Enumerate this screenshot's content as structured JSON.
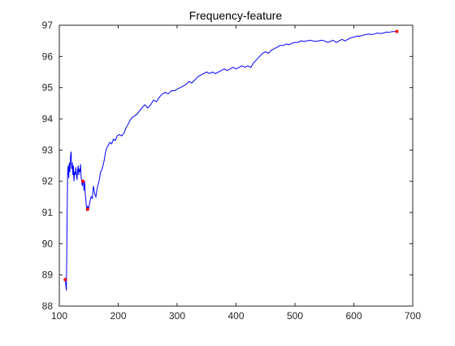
{
  "chart_data": {
    "type": "line",
    "title": "Frequency-feature",
    "xlabel": "",
    "ylabel": "",
    "xlim": [
      100,
      700
    ],
    "ylim": [
      88,
      97
    ],
    "x_ticks": [
      100,
      200,
      300,
      400,
      500,
      600,
      700
    ],
    "y_ticks": [
      88,
      89,
      90,
      91,
      92,
      93,
      94,
      95,
      96,
      97
    ],
    "grid": false,
    "legend": "none",
    "colors": {
      "line": "#0000ff",
      "marker": "#ff0000",
      "axis": "#262626"
    },
    "series": [
      {
        "points": [
          [
            110,
            88.85
          ],
          [
            112,
            88.5
          ],
          [
            113,
            90.3
          ],
          [
            114,
            92.3
          ],
          [
            115,
            92.5
          ],
          [
            116,
            92.1
          ],
          [
            117,
            92.6
          ],
          [
            118,
            92.3
          ],
          [
            119,
            92.8
          ],
          [
            120,
            92.95
          ],
          [
            121,
            92.4
          ],
          [
            122,
            92.6
          ],
          [
            123,
            92.2
          ],
          [
            124,
            92.5
          ],
          [
            125,
            92.0
          ],
          [
            126,
            92.3
          ],
          [
            127,
            92.2
          ],
          [
            128,
            92.45
          ],
          [
            129,
            92.25
          ],
          [
            130,
            92.05
          ],
          [
            131,
            92.35
          ],
          [
            132,
            92.5
          ],
          [
            133,
            92.2
          ],
          [
            134,
            92.4
          ],
          [
            135,
            92.3
          ],
          [
            136,
            92.55
          ],
          [
            137,
            92.15
          ],
          [
            138,
            92.0
          ],
          [
            139,
            91.85
          ],
          [
            140,
            92.05
          ],
          [
            141,
            91.95
          ],
          [
            142,
            91.7
          ],
          [
            143,
            92.0
          ],
          [
            144,
            91.6
          ],
          [
            145,
            91.4
          ],
          [
            146,
            91.2
          ],
          [
            147,
            91.05
          ],
          [
            148,
            91.2
          ],
          [
            150,
            91.15
          ],
          [
            152,
            91.35
          ],
          [
            154,
            91.5
          ],
          [
            156,
            91.45
          ],
          [
            158,
            91.85
          ],
          [
            160,
            91.6
          ],
          [
            162,
            91.5
          ],
          [
            164,
            91.75
          ],
          [
            166,
            91.9
          ],
          [
            168,
            92.05
          ],
          [
            170,
            92.3
          ],
          [
            172,
            92.35
          ],
          [
            174,
            92.5
          ],
          [
            176,
            92.65
          ],
          [
            178,
            92.9
          ],
          [
            180,
            93.05
          ],
          [
            183,
            93.15
          ],
          [
            186,
            93.25
          ],
          [
            189,
            93.2
          ],
          [
            192,
            93.35
          ],
          [
            195,
            93.3
          ],
          [
            198,
            93.45
          ],
          [
            202,
            93.5
          ],
          [
            206,
            93.45
          ],
          [
            210,
            93.55
          ],
          [
            213,
            93.7
          ],
          [
            216,
            93.8
          ],
          [
            220,
            93.95
          ],
          [
            224,
            94.05
          ],
          [
            228,
            94.1
          ],
          [
            232,
            94.15
          ],
          [
            236,
            94.25
          ],
          [
            240,
            94.35
          ],
          [
            245,
            94.45
          ],
          [
            250,
            94.35
          ],
          [
            255,
            94.45
          ],
          [
            260,
            94.6
          ],
          [
            265,
            94.55
          ],
          [
            270,
            94.7
          ],
          [
            275,
            94.8
          ],
          [
            280,
            94.85
          ],
          [
            285,
            94.8
          ],
          [
            290,
            94.9
          ],
          [
            295,
            94.9
          ],
          [
            300,
            94.95
          ],
          [
            305,
            95.0
          ],
          [
            310,
            95.05
          ],
          [
            315,
            95.1
          ],
          [
            320,
            95.2
          ],
          [
            325,
            95.15
          ],
          [
            330,
            95.25
          ],
          [
            335,
            95.35
          ],
          [
            340,
            95.4
          ],
          [
            345,
            95.45
          ],
          [
            350,
            95.5
          ],
          [
            355,
            95.45
          ],
          [
            360,
            95.5
          ],
          [
            365,
            95.45
          ],
          [
            370,
            95.5
          ],
          [
            375,
            95.55
          ],
          [
            380,
            95.6
          ],
          [
            385,
            95.55
          ],
          [
            390,
            95.6
          ],
          [
            395,
            95.65
          ],
          [
            400,
            95.6
          ],
          [
            405,
            95.65
          ],
          [
            410,
            95.7
          ],
          [
            415,
            95.65
          ],
          [
            420,
            95.7
          ],
          [
            425,
            95.65
          ],
          [
            430,
            95.8
          ],
          [
            435,
            95.9
          ],
          [
            440,
            96.0
          ],
          [
            445,
            96.1
          ],
          [
            450,
            96.15
          ],
          [
            455,
            96.1
          ],
          [
            460,
            96.2
          ],
          [
            465,
            96.25
          ],
          [
            470,
            96.3
          ],
          [
            475,
            96.35
          ],
          [
            480,
            96.35
          ],
          [
            485,
            96.4
          ],
          [
            490,
            96.38
          ],
          [
            495,
            96.42
          ],
          [
            500,
            96.45
          ],
          [
            505,
            96.45
          ],
          [
            510,
            96.5
          ],
          [
            515,
            96.48
          ],
          [
            520,
            96.5
          ],
          [
            525,
            96.52
          ],
          [
            530,
            96.5
          ],
          [
            535,
            96.48
          ],
          [
            540,
            96.5
          ],
          [
            545,
            96.52
          ],
          [
            550,
            96.5
          ],
          [
            555,
            96.45
          ],
          [
            560,
            96.48
          ],
          [
            565,
            96.52
          ],
          [
            570,
            96.45
          ],
          [
            575,
            96.5
          ],
          [
            580,
            96.55
          ],
          [
            585,
            96.5
          ],
          [
            590,
            96.55
          ],
          [
            595,
            96.6
          ],
          [
            600,
            96.62
          ],
          [
            605,
            96.65
          ],
          [
            610,
            96.65
          ],
          [
            615,
            96.68
          ],
          [
            620,
            96.7
          ],
          [
            625,
            96.72
          ],
          [
            630,
            96.7
          ],
          [
            635,
            96.72
          ],
          [
            640,
            96.75
          ],
          [
            645,
            96.73
          ],
          [
            650,
            96.75
          ],
          [
            655,
            96.78
          ],
          [
            660,
            96.77
          ],
          [
            665,
            96.8
          ],
          [
            670,
            96.8
          ],
          [
            673,
            96.8
          ]
        ]
      }
    ],
    "markers": [
      {
        "x": 110,
        "y": 88.85
      },
      {
        "x": 140,
        "y": 92.0
      },
      {
        "x": 148,
        "y": 91.1
      },
      {
        "x": 673,
        "y": 96.8
      }
    ]
  }
}
